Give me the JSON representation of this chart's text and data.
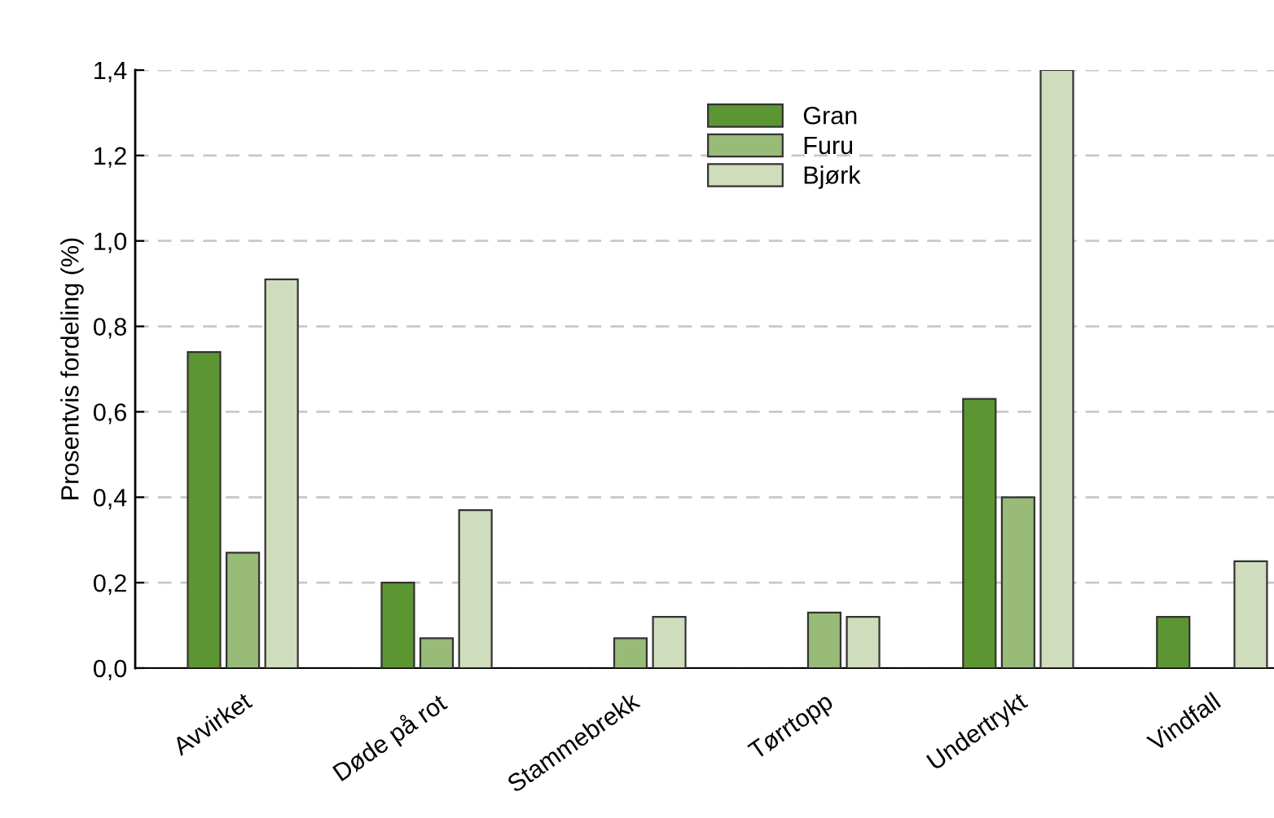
{
  "chart_data": {
    "type": "bar",
    "ylabel": "Prosentvis fordeling (%)",
    "categories": [
      "Avvirket",
      "Døde på rot",
      "Stammebrekk",
      "Tørrtopp",
      "Undertrykt",
      "Vindfall"
    ],
    "series": [
      {
        "name": "Gran",
        "color": "#5c9632",
        "values": [
          0.74,
          0.2,
          null,
          null,
          0.63,
          0.12
        ]
      },
      {
        "name": "Furu",
        "color": "#98bb78",
        "values": [
          0.27,
          0.07,
          0.07,
          0.13,
          0.4,
          null
        ]
      },
      {
        "name": "Bjørk",
        "color": "#d0ddbd",
        "values": [
          0.91,
          0.37,
          0.12,
          0.12,
          1.4,
          0.25
        ]
      }
    ],
    "ylim": [
      0,
      1.4
    ],
    "yticks": [
      {
        "value": 0,
        "label": "0,0"
      },
      {
        "value": 0.2,
        "label": "0,2"
      },
      {
        "value": 0.4,
        "label": "0,4"
      },
      {
        "value": 0.6,
        "label": "0,6"
      },
      {
        "value": 0.8,
        "label": "0,8"
      },
      {
        "value": 1.0,
        "label": "1,0"
      },
      {
        "value": 1.2,
        "label": "1,2"
      },
      {
        "value": 1.4,
        "label": "1,4"
      }
    ],
    "grid": "y",
    "legend": "top"
  }
}
